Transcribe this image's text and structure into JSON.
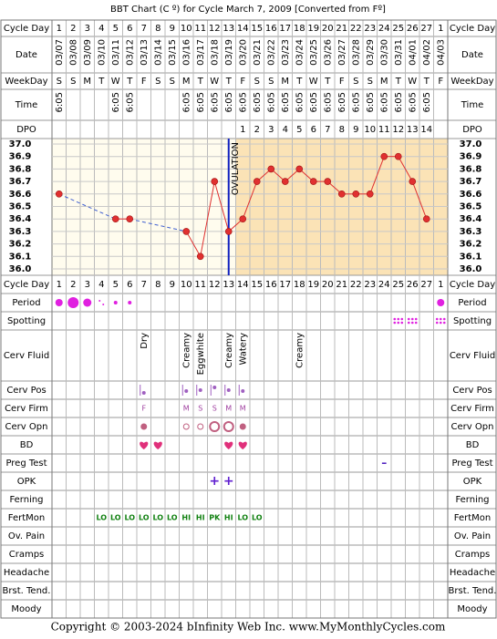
{
  "header": {
    "title": "BBT Chart (C º) for Cycle March 7, 2009  [Converted from Fº]"
  },
  "top_labels": [
    "Cycle Day",
    "Date",
    "WeekDay",
    "Time",
    "DPO"
  ],
  "lower_labels": [
    "Cycle Day",
    "Period",
    "Spotting",
    "Cerv Fluid",
    "Cerv Pos",
    "Cerv Firm",
    "Cerv Opn",
    "BD",
    "Preg Test",
    "OPK",
    "Ferning",
    "FertMon",
    "Ov. Pain",
    "Cramps",
    "Headache",
    "Brst. Tend.",
    "Moody"
  ],
  "chart_data": {
    "type": "line",
    "categories": [
      1,
      2,
      3,
      4,
      5,
      6,
      7,
      8,
      9,
      10,
      11,
      12,
      13,
      14,
      15,
      16,
      17,
      18,
      19,
      20,
      21,
      22,
      23,
      24,
      25,
      26,
      27,
      1
    ],
    "dates": [
      "03/07",
      "03/08",
      "03/09",
      "03/10",
      "03/11",
      "03/12",
      "03/13",
      "03/14",
      "03/15",
      "03/16",
      "03/17",
      "03/18",
      "03/19",
      "03/20",
      "03/21",
      "03/22",
      "03/23",
      "03/24",
      "03/25",
      "03/26",
      "03/27",
      "03/28",
      "03/29",
      "03/30",
      "03/31",
      "04/01",
      "04/02",
      "04/03"
    ],
    "weekdays": [
      "S",
      "S",
      "M",
      "T",
      "W",
      "T",
      "F",
      "S",
      "S",
      "M",
      "T",
      "W",
      "T",
      "F",
      "S",
      "S",
      "M",
      "T",
      "W",
      "T",
      "F",
      "S",
      "S",
      "M",
      "T",
      "W",
      "T",
      "F"
    ],
    "times": [
      "6:05",
      null,
      null,
      null,
      "6:05",
      "6:05",
      null,
      null,
      null,
      "6:05",
      "6:05",
      "6:05",
      "6:05",
      "6:05",
      "6:05",
      "6:05",
      "6:05",
      "6:05",
      "6:05",
      "6:05",
      "6:05",
      "6:05",
      "6:05",
      "6:05",
      "6:05",
      "6:05",
      "6:05",
      null
    ],
    "dpo": [
      null,
      null,
      null,
      null,
      null,
      null,
      null,
      null,
      null,
      null,
      null,
      null,
      null,
      1,
      2,
      3,
      4,
      5,
      6,
      7,
      8,
      9,
      10,
      11,
      12,
      13,
      14,
      null
    ],
    "series": [
      {
        "color": "#e03030",
        "values": [
          36.6,
          null,
          null,
          null,
          36.4,
          36.4,
          null,
          null,
          null,
          36.3,
          36.1,
          36.7,
          36.3,
          36.4,
          36.7,
          36.8,
          36.7,
          36.8,
          36.7,
          36.7,
          36.6,
          36.6,
          36.6,
          36.9,
          36.9,
          36.7,
          36.4,
          null
        ]
      }
    ],
    "ylim": [
      36.0,
      37.0
    ],
    "yticks": [
      {
        "value": 36.0,
        "label": "36.0"
      },
      36.1,
      36.2,
      36.3,
      36.4,
      36.5,
      36.6,
      36.7,
      36.8,
      36.9,
      {
        "value": 37.0,
        "label": "37.0"
      }
    ],
    "ovulation": {
      "label": "OVULATION",
      "cycle_day": 13
    },
    "grid": true
  },
  "daily": {
    "cerv_fluid": [
      null,
      null,
      null,
      null,
      null,
      null,
      "Dry",
      null,
      null,
      "Creamy",
      "Eggwhite",
      null,
      "Creamy",
      "Watery",
      null,
      null,
      null,
      "Creamy",
      null,
      null,
      null,
      null,
      null,
      null,
      null,
      null,
      null,
      null
    ],
    "cerv_firm": [
      null,
      null,
      null,
      null,
      null,
      null,
      "F",
      null,
      null,
      "M",
      "S",
      "S",
      "M",
      "M",
      null,
      null,
      null,
      null,
      null,
      null,
      null,
      null,
      null,
      null,
      null,
      null,
      null,
      null
    ],
    "preg_test": [
      null,
      null,
      null,
      null,
      null,
      null,
      null,
      null,
      null,
      null,
      null,
      null,
      null,
      null,
      null,
      null,
      null,
      null,
      null,
      null,
      null,
      null,
      null,
      "–",
      null,
      null,
      null,
      null
    ],
    "opk": [
      null,
      null,
      null,
      null,
      null,
      null,
      null,
      null,
      null,
      null,
      null,
      "+",
      "+",
      null,
      null,
      null,
      null,
      null,
      null,
      null,
      null,
      null,
      null,
      null,
      null,
      null,
      null,
      null
    ],
    "fertmon": [
      null,
      null,
      null,
      "LO",
      "LO",
      "LO",
      "LO",
      "LO",
      "LO",
      "HI",
      "HI",
      "PK",
      "HI",
      "LO",
      "LO",
      null,
      null,
      null,
      null,
      null,
      null,
      null,
      null,
      null,
      null,
      null,
      null,
      null
    ]
  },
  "footer": "Copyright © 2003-2024 bInfinity Web Inc.     www.MyMonthlyCycles.com"
}
